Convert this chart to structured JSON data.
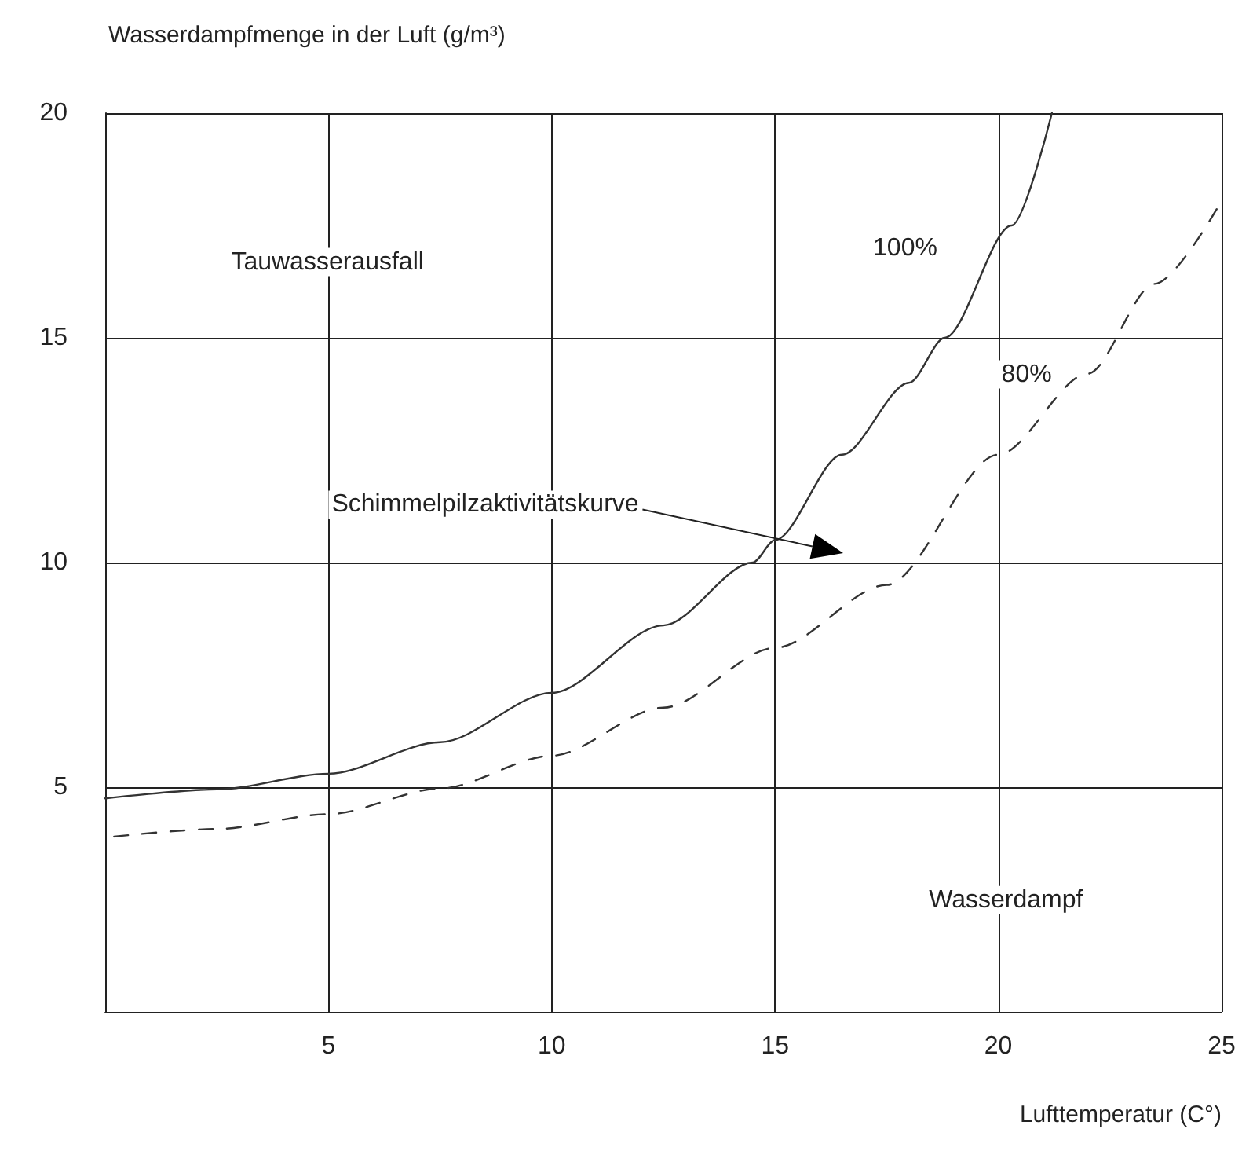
{
  "chart_data": {
    "type": "line",
    "xlabel": "Lufttemperatur (C°)",
    "ylabel": "Wasserdampfmenge in der Luft (g/m³)",
    "xlim": [
      0,
      25
    ],
    "xticks": [
      5,
      10,
      15,
      20,
      25
    ],
    "ylim": [
      0,
      20
    ],
    "yticks": [
      5,
      10,
      15,
      20
    ],
    "grid": true,
    "legend": false,
    "marker": "none",
    "series": [
      {
        "name": "100%",
        "color": "#333333",
        "line_style": "solid",
        "x": [
          0,
          2.5,
          5,
          7.5,
          10,
          12.5,
          14.5,
          15,
          16.5,
          18,
          18.8,
          20.3,
          21.2
        ],
        "values": [
          4.75,
          4.95,
          5.3,
          6.0,
          7.1,
          8.6,
          10,
          10.5,
          12.4,
          14.0,
          15,
          17.5,
          20
        ]
      },
      {
        "name": "80%",
        "color": "#333333",
        "line_style": "dashed",
        "x": [
          0.2,
          2.5,
          5,
          7.5,
          10,
          12.5,
          15,
          17.5,
          20,
          22,
          23.5,
          25
        ],
        "values": [
          3.9,
          4.07,
          4.4,
          4.97,
          5.7,
          6.77,
          8.1,
          9.5,
          12.4,
          14.2,
          16.2,
          18.05
        ]
      }
    ],
    "annotations": [
      "Tauwasserausfall",
      "Wasserdampf",
      "Schimmelpilzaktivitätskurve"
    ]
  }
}
